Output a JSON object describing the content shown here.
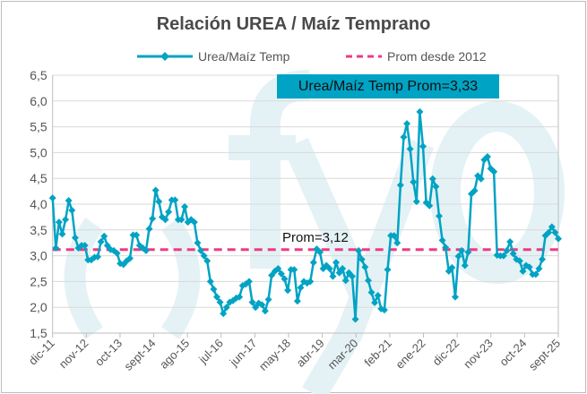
{
  "chart_data": {
    "type": "line",
    "title": "Relación UREA / Maíz Temprano",
    "xlabel": "",
    "ylabel": "",
    "ylim": [
      1.5,
      6.5
    ],
    "yticks": [
      "1,5",
      "2,0",
      "2,5",
      "3,0",
      "3,5",
      "4,0",
      "4,5",
      "5,0",
      "5,5",
      "6,0",
      "6,5"
    ],
    "xticks": [
      "dic-11",
      "nov-12",
      "oct-13",
      "sept-14",
      "ago-15",
      "jul-16",
      "jun-17",
      "may-18",
      "abr-19",
      "mar-20",
      "feb-21",
      "ene-22",
      "dic-22",
      "nov-23",
      "oct-24",
      "sept-25"
    ],
    "grid": true,
    "legend_position": "top",
    "series": [
      {
        "name": "Urea/Maíz Temp",
        "color": "#00a3c4",
        "values": [
          4.12,
          3.15,
          3.65,
          3.42,
          3.7,
          4.07,
          3.88,
          3.35,
          3.15,
          3.2,
          3.2,
          2.92,
          2.92,
          2.97,
          2.98,
          3.27,
          3.38,
          3.2,
          3.12,
          3.1,
          3.05,
          2.85,
          2.83,
          2.9,
          2.95,
          3.4,
          3.4,
          3.2,
          3.15,
          3.1,
          3.52,
          3.72,
          4.27,
          4.05,
          3.75,
          3.7,
          3.85,
          4.08,
          4.08,
          3.7,
          3.7,
          3.95,
          3.65,
          3.7,
          3.65,
          3.25,
          3.1,
          3.0,
          2.9,
          2.5,
          2.35,
          2.2,
          2.1,
          1.88,
          2.0,
          2.1,
          2.13,
          2.18,
          2.2,
          2.42,
          2.45,
          2.5,
          2.1,
          2.0,
          2.08,
          2.05,
          1.93,
          2.15,
          2.62,
          2.7,
          2.75,
          2.65,
          2.55,
          2.33,
          2.73,
          2.73,
          2.12,
          2.38,
          2.5,
          2.47,
          2.5,
          2.87,
          3.13,
          3.07,
          2.75,
          2.81,
          2.75,
          2.6,
          2.87,
          2.67,
          2.75,
          2.52,
          2.67,
          2.6,
          1.77,
          3.1,
          2.93,
          2.78,
          2.52,
          2.29,
          2.09,
          2.23,
          1.97,
          1.95,
          2.73,
          3.39,
          3.39,
          3.25,
          4.37,
          5.3,
          5.56,
          5.07,
          4.43,
          4.05,
          5.79,
          5.12,
          4.03,
          3.97,
          4.49,
          4.34,
          3.77,
          3.3,
          3.16,
          2.7,
          2.77,
          2.2,
          2.99,
          3.1,
          2.81,
          3.07,
          4.2,
          4.26,
          4.55,
          4.49,
          4.86,
          4.92,
          4.69,
          4.63,
          3.01,
          3.0,
          3.0,
          3.1,
          3.27,
          3.04,
          2.93,
          2.9,
          2.7,
          2.81,
          2.78,
          2.64,
          2.64,
          2.75,
          2.93,
          3.39,
          3.45,
          3.56,
          3.45,
          3.33
        ]
      },
      {
        "name": "Prom desde 2012",
        "color": "#ee3a84",
        "constant": 3.12
      }
    ],
    "annotations": {
      "series_avg": "Urea/Maíz Temp Prom=3,33",
      "avg_label": "Prom=3,12"
    }
  },
  "watermark": "()fyo"
}
